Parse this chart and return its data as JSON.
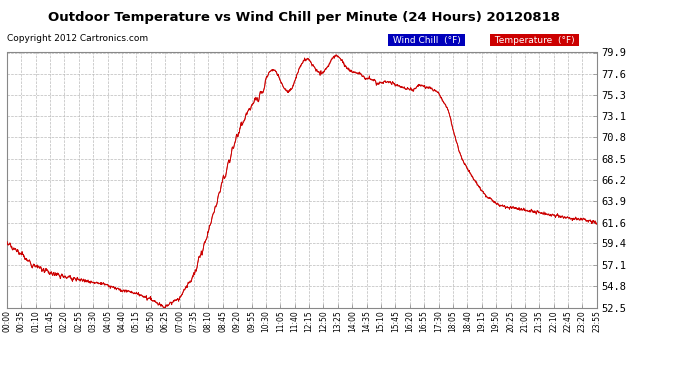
{
  "title": "Outdoor Temperature vs Wind Chill per Minute (24 Hours) 20120818",
  "copyright": "Copyright 2012 Cartronics.com",
  "ylabel_values": [
    79.9,
    77.6,
    75.3,
    73.1,
    70.8,
    68.5,
    66.2,
    63.9,
    61.6,
    59.4,
    57.1,
    54.8,
    52.5
  ],
  "ylim": [
    52.5,
    79.9
  ],
  "bg_color": "#ffffff",
  "plot_bg_color": "#ffffff",
  "grid_color": "#bbbbbb",
  "line_color": "#cc0000",
  "legend_items": [
    {
      "label": "Wind Chill  (°F)",
      "bg": "#0000bb",
      "fg": "#ffffff"
    },
    {
      "label": "Temperature  (°F)",
      "bg": "#cc0000",
      "fg": "#ffffff"
    }
  ],
  "x_tick_labels": [
    "00:00",
    "00:35",
    "01:10",
    "01:45",
    "02:20",
    "02:55",
    "03:30",
    "04:05",
    "04:40",
    "05:15",
    "05:50",
    "06:25",
    "07:00",
    "07:35",
    "08:10",
    "08:45",
    "09:20",
    "09:55",
    "10:30",
    "11:05",
    "11:40",
    "12:15",
    "12:50",
    "13:25",
    "14:00",
    "14:35",
    "15:10",
    "15:45",
    "16:20",
    "16:55",
    "17:30",
    "18:05",
    "18:40",
    "19:15",
    "19:50",
    "20:25",
    "21:00",
    "21:35",
    "22:10",
    "22:45",
    "23:20",
    "23:55"
  ],
  "num_points": 1440,
  "seed": 7
}
